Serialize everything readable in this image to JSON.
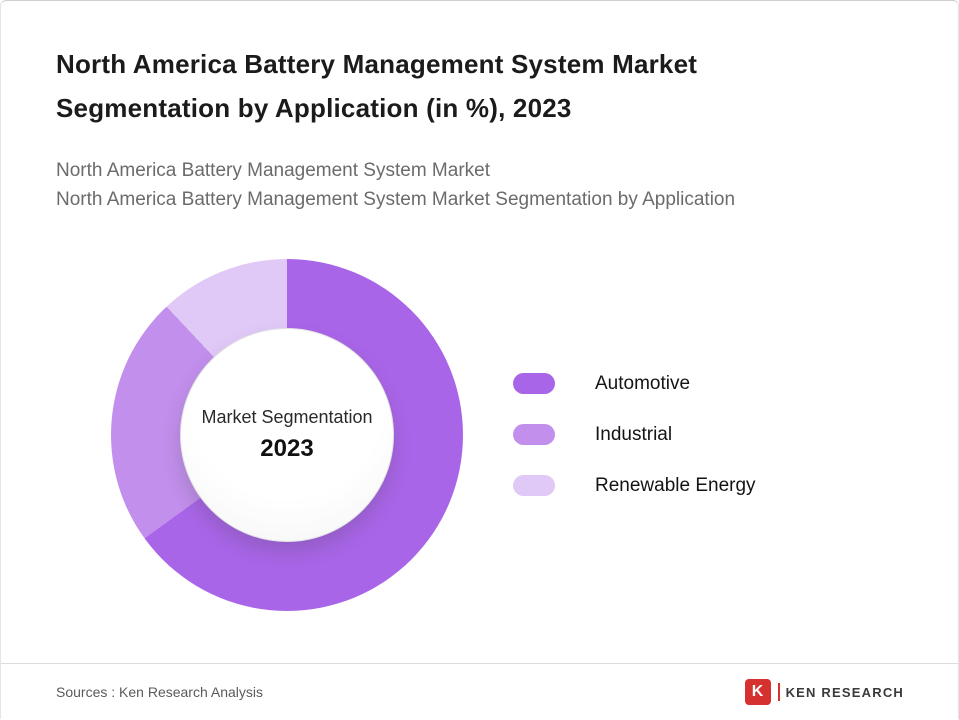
{
  "header": {
    "title": "North America Battery Management System Market Segmentation by Application (in %), 2023",
    "subtitle_line1": "North America Battery Management System Market",
    "subtitle_line2": "North America Battery Management System Market Segmentation by Application"
  },
  "chart_data": {
    "type": "pie",
    "donut": true,
    "title": "North America Battery Management System Market Segmentation by Application (in %), 2023",
    "center_label_line1": "Market Segmentation",
    "center_label_line2": "2023",
    "categories": [
      "Automotive",
      "Industrial",
      "Renewable Energy"
    ],
    "values": [
      65,
      23,
      12
    ],
    "unit": "%",
    "colors": [
      "#a965e8",
      "#c28fec",
      "#e1c9f7"
    ],
    "legend_position": "right",
    "start_angle_deg": 0
  },
  "footer": {
    "source": "Sources : Ken Research Analysis",
    "logo_letter": "K",
    "logo_text": "KEN RESEARCH",
    "logo_color": "#d5312e"
  }
}
